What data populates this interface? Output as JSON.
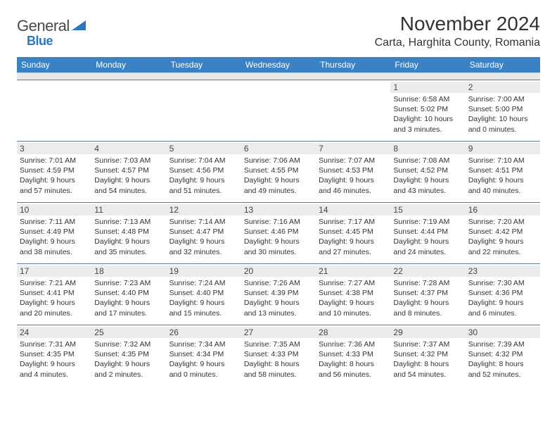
{
  "logo": {
    "text_gray": "General",
    "text_blue": "Blue"
  },
  "header": {
    "title": "November 2024",
    "location": "Carta, Harghita County, Romania"
  },
  "colors": {
    "weekday_bg": "#3b82c4",
    "weekday_text": "#ffffff",
    "daynum_bg": "#ececec",
    "week_border": "#5a7a9a",
    "logo_blue": "#2f78bd"
  },
  "weekdays": [
    "Sunday",
    "Monday",
    "Tuesday",
    "Wednesday",
    "Thursday",
    "Friday",
    "Saturday"
  ],
  "weeks": [
    [
      {
        "n": "",
        "sunrise": "",
        "sunset": "",
        "daylight": ""
      },
      {
        "n": "",
        "sunrise": "",
        "sunset": "",
        "daylight": ""
      },
      {
        "n": "",
        "sunrise": "",
        "sunset": "",
        "daylight": ""
      },
      {
        "n": "",
        "sunrise": "",
        "sunset": "",
        "daylight": ""
      },
      {
        "n": "",
        "sunrise": "",
        "sunset": "",
        "daylight": ""
      },
      {
        "n": "1",
        "sunrise": "Sunrise: 6:58 AM",
        "sunset": "Sunset: 5:02 PM",
        "daylight": "Daylight: 10 hours and 3 minutes."
      },
      {
        "n": "2",
        "sunrise": "Sunrise: 7:00 AM",
        "sunset": "Sunset: 5:00 PM",
        "daylight": "Daylight: 10 hours and 0 minutes."
      }
    ],
    [
      {
        "n": "3",
        "sunrise": "Sunrise: 7:01 AM",
        "sunset": "Sunset: 4:59 PM",
        "daylight": "Daylight: 9 hours and 57 minutes."
      },
      {
        "n": "4",
        "sunrise": "Sunrise: 7:03 AM",
        "sunset": "Sunset: 4:57 PM",
        "daylight": "Daylight: 9 hours and 54 minutes."
      },
      {
        "n": "5",
        "sunrise": "Sunrise: 7:04 AM",
        "sunset": "Sunset: 4:56 PM",
        "daylight": "Daylight: 9 hours and 51 minutes."
      },
      {
        "n": "6",
        "sunrise": "Sunrise: 7:06 AM",
        "sunset": "Sunset: 4:55 PM",
        "daylight": "Daylight: 9 hours and 49 minutes."
      },
      {
        "n": "7",
        "sunrise": "Sunrise: 7:07 AM",
        "sunset": "Sunset: 4:53 PM",
        "daylight": "Daylight: 9 hours and 46 minutes."
      },
      {
        "n": "8",
        "sunrise": "Sunrise: 7:08 AM",
        "sunset": "Sunset: 4:52 PM",
        "daylight": "Daylight: 9 hours and 43 minutes."
      },
      {
        "n": "9",
        "sunrise": "Sunrise: 7:10 AM",
        "sunset": "Sunset: 4:51 PM",
        "daylight": "Daylight: 9 hours and 40 minutes."
      }
    ],
    [
      {
        "n": "10",
        "sunrise": "Sunrise: 7:11 AM",
        "sunset": "Sunset: 4:49 PM",
        "daylight": "Daylight: 9 hours and 38 minutes."
      },
      {
        "n": "11",
        "sunrise": "Sunrise: 7:13 AM",
        "sunset": "Sunset: 4:48 PM",
        "daylight": "Daylight: 9 hours and 35 minutes."
      },
      {
        "n": "12",
        "sunrise": "Sunrise: 7:14 AM",
        "sunset": "Sunset: 4:47 PM",
        "daylight": "Daylight: 9 hours and 32 minutes."
      },
      {
        "n": "13",
        "sunrise": "Sunrise: 7:16 AM",
        "sunset": "Sunset: 4:46 PM",
        "daylight": "Daylight: 9 hours and 30 minutes."
      },
      {
        "n": "14",
        "sunrise": "Sunrise: 7:17 AM",
        "sunset": "Sunset: 4:45 PM",
        "daylight": "Daylight: 9 hours and 27 minutes."
      },
      {
        "n": "15",
        "sunrise": "Sunrise: 7:19 AM",
        "sunset": "Sunset: 4:44 PM",
        "daylight": "Daylight: 9 hours and 24 minutes."
      },
      {
        "n": "16",
        "sunrise": "Sunrise: 7:20 AM",
        "sunset": "Sunset: 4:42 PM",
        "daylight": "Daylight: 9 hours and 22 minutes."
      }
    ],
    [
      {
        "n": "17",
        "sunrise": "Sunrise: 7:21 AM",
        "sunset": "Sunset: 4:41 PM",
        "daylight": "Daylight: 9 hours and 20 minutes."
      },
      {
        "n": "18",
        "sunrise": "Sunrise: 7:23 AM",
        "sunset": "Sunset: 4:40 PM",
        "daylight": "Daylight: 9 hours and 17 minutes."
      },
      {
        "n": "19",
        "sunrise": "Sunrise: 7:24 AM",
        "sunset": "Sunset: 4:40 PM",
        "daylight": "Daylight: 9 hours and 15 minutes."
      },
      {
        "n": "20",
        "sunrise": "Sunrise: 7:26 AM",
        "sunset": "Sunset: 4:39 PM",
        "daylight": "Daylight: 9 hours and 13 minutes."
      },
      {
        "n": "21",
        "sunrise": "Sunrise: 7:27 AM",
        "sunset": "Sunset: 4:38 PM",
        "daylight": "Daylight: 9 hours and 10 minutes."
      },
      {
        "n": "22",
        "sunrise": "Sunrise: 7:28 AM",
        "sunset": "Sunset: 4:37 PM",
        "daylight": "Daylight: 9 hours and 8 minutes."
      },
      {
        "n": "23",
        "sunrise": "Sunrise: 7:30 AM",
        "sunset": "Sunset: 4:36 PM",
        "daylight": "Daylight: 9 hours and 6 minutes."
      }
    ],
    [
      {
        "n": "24",
        "sunrise": "Sunrise: 7:31 AM",
        "sunset": "Sunset: 4:35 PM",
        "daylight": "Daylight: 9 hours and 4 minutes."
      },
      {
        "n": "25",
        "sunrise": "Sunrise: 7:32 AM",
        "sunset": "Sunset: 4:35 PM",
        "daylight": "Daylight: 9 hours and 2 minutes."
      },
      {
        "n": "26",
        "sunrise": "Sunrise: 7:34 AM",
        "sunset": "Sunset: 4:34 PM",
        "daylight": "Daylight: 9 hours and 0 minutes."
      },
      {
        "n": "27",
        "sunrise": "Sunrise: 7:35 AM",
        "sunset": "Sunset: 4:33 PM",
        "daylight": "Daylight: 8 hours and 58 minutes."
      },
      {
        "n": "28",
        "sunrise": "Sunrise: 7:36 AM",
        "sunset": "Sunset: 4:33 PM",
        "daylight": "Daylight: 8 hours and 56 minutes."
      },
      {
        "n": "29",
        "sunrise": "Sunrise: 7:37 AM",
        "sunset": "Sunset: 4:32 PM",
        "daylight": "Daylight: 8 hours and 54 minutes."
      },
      {
        "n": "30",
        "sunrise": "Sunrise: 7:39 AM",
        "sunset": "Sunset: 4:32 PM",
        "daylight": "Daylight: 8 hours and 52 minutes."
      }
    ]
  ]
}
